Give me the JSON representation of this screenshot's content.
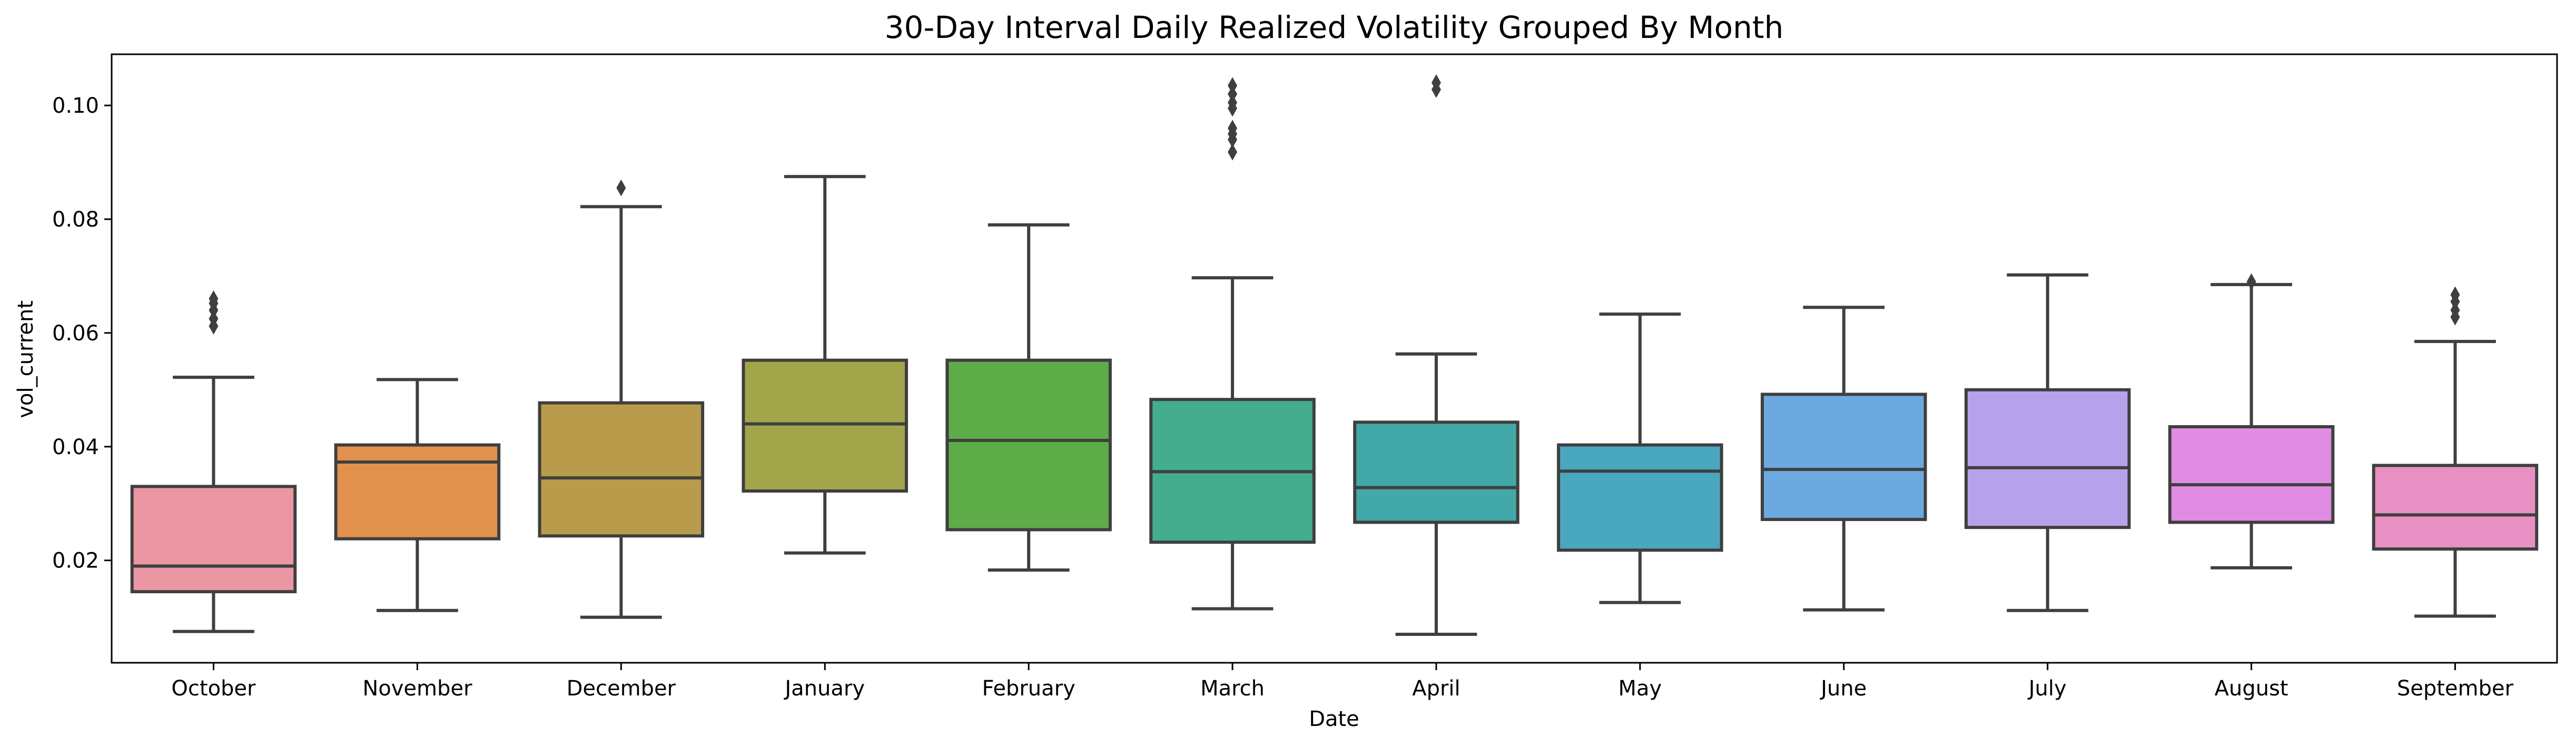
{
  "chart_data": {
    "type": "box",
    "title": "30-Day Interval Daily Realized Volatility Grouped By Month",
    "xlabel": "Date",
    "ylabel": "vol_current",
    "ylim": [
      0.002,
      0.109
    ],
    "yticks": [
      0.02,
      0.04,
      0.06,
      0.08,
      0.1
    ],
    "ytick_labels": [
      "0.02",
      "0.04",
      "0.06",
      "0.08",
      "0.10"
    ],
    "grid": false,
    "legend": "none",
    "categories": [
      "October",
      "November",
      "December",
      "January",
      "February",
      "March",
      "April",
      "May",
      "June",
      "July",
      "August",
      "September"
    ],
    "colors": [
      "#ea96a3",
      "#e1914d",
      "#b89b4b",
      "#a3a54b",
      "#5dac48",
      "#43ad8e",
      "#43a8a8",
      "#49a8bd",
      "#6ba9e0",
      "#b5a2ea",
      "#e18ce3",
      "#e890c3"
    ],
    "boxes": [
      {
        "min": 0.0075,
        "q1": 0.0145,
        "median": 0.019,
        "q3": 0.033,
        "max": 0.0522,
        "outliers": [
          0.0612,
          0.0625,
          0.064,
          0.0652,
          0.066
        ]
      },
      {
        "min": 0.0112,
        "q1": 0.0238,
        "median": 0.0373,
        "q3": 0.0403,
        "max": 0.0518,
        "outliers": []
      },
      {
        "min": 0.01,
        "q1": 0.0243,
        "median": 0.0345,
        "q3": 0.0477,
        "max": 0.0822,
        "outliers": [
          0.0855
        ]
      },
      {
        "min": 0.0213,
        "q1": 0.0322,
        "median": 0.044,
        "q3": 0.0552,
        "max": 0.0875,
        "outliers": []
      },
      {
        "min": 0.0183,
        "q1": 0.0254,
        "median": 0.0411,
        "q3": 0.0552,
        "max": 0.079,
        "outliers": []
      },
      {
        "min": 0.0115,
        "q1": 0.0232,
        "median": 0.0356,
        "q3": 0.0483,
        "max": 0.0697,
        "outliers": [
          0.0918,
          0.094,
          0.095,
          0.096,
          0.0995,
          0.1005,
          0.102,
          0.1035
        ]
      },
      {
        "min": 0.007,
        "q1": 0.0267,
        "median": 0.0328,
        "q3": 0.0443,
        "max": 0.0563,
        "outliers": [
          0.1028,
          0.104
        ]
      },
      {
        "min": 0.0126,
        "q1": 0.0218,
        "median": 0.0357,
        "q3": 0.0403,
        "max": 0.0633,
        "outliers": []
      },
      {
        "min": 0.0113,
        "q1": 0.0272,
        "median": 0.036,
        "q3": 0.0492,
        "max": 0.0645,
        "outliers": []
      },
      {
        "min": 0.0112,
        "q1": 0.0258,
        "median": 0.0363,
        "q3": 0.05,
        "max": 0.0702,
        "outliers": []
      },
      {
        "min": 0.0187,
        "q1": 0.0267,
        "median": 0.0333,
        "q3": 0.0435,
        "max": 0.0685,
        "outliers": [
          0.069
        ]
      },
      {
        "min": 0.0102,
        "q1": 0.022,
        "median": 0.028,
        "q3": 0.0367,
        "max": 0.0585,
        "outliers": [
          0.0628,
          0.064,
          0.0655,
          0.0667
        ]
      }
    ]
  }
}
